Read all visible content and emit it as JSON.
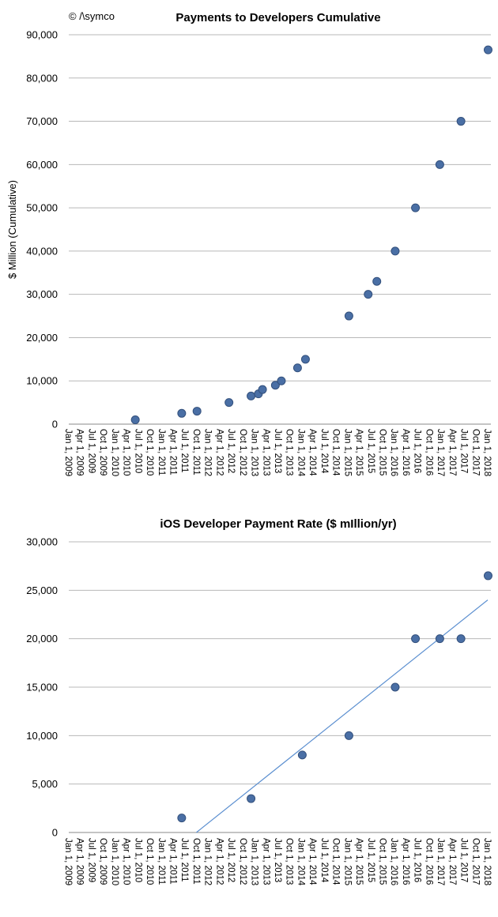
{
  "copyright": "© /\\symco",
  "chart_data": [
    {
      "type": "scatter",
      "title": "Payments to Developers Cumulative",
      "xlabel": "",
      "ylabel": "$ Million (Cumulative)",
      "ylim": [
        0,
        90000
      ],
      "yticks": [
        "0",
        "10,000",
        "20,000",
        "30,000",
        "40,000",
        "50,000",
        "60,000",
        "70,000",
        "80,000",
        "90,000"
      ],
      "xticks": [
        "Jan 1, 2009",
        "Apr 1, 2009",
        "Jul 1, 2009",
        "Oct 1, 2009",
        "Jan 1, 2010",
        "Apr 1, 2010",
        "Jul 1, 2010",
        "Oct 1, 2010",
        "Jan 1, 2011",
        "Apr 1, 2011",
        "Jul 1, 2011",
        "Oct 1, 2011",
        "Jan 1, 2012",
        "Apr 1, 2012",
        "Jul 1, 2012",
        "Oct 1, 2012",
        "Jan 1, 2013",
        "Apr 1, 2013",
        "Jul 1, 2013",
        "Oct 1, 2013",
        "Jan 1, 2014",
        "Apr 1, 2014",
        "Jul 1, 2014",
        "Oct 1, 2014",
        "Jan 1, 2015",
        "Apr 1, 2015",
        "Jul 1, 2015",
        "Oct 1, 2015",
        "Jan 1, 2016",
        "Apr 1, 2016",
        "Jul 1, 2016",
        "Oct 1, 2016",
        "Jan 1, 2017",
        "Apr 1, 2017",
        "Jul 1, 2017",
        "Oct 1, 2017",
        "Jan 1, 2018"
      ],
      "grid": true,
      "points": [
        {
          "x": "2010-06-07",
          "y": 1000
        },
        {
          "x": "2011-06-06",
          "y": 2500
        },
        {
          "x": "2011-10-04",
          "y": 3000
        },
        {
          "x": "2012-06-11",
          "y": 5000
        },
        {
          "x": "2012-12-01",
          "y": 6500
        },
        {
          "x": "2013-01-28",
          "y": 7000
        },
        {
          "x": "2013-03-01",
          "y": 8000
        },
        {
          "x": "2013-06-10",
          "y": 9000
        },
        {
          "x": "2013-07-27",
          "y": 10000
        },
        {
          "x": "2013-12-01",
          "y": 13000
        },
        {
          "x": "2014-02-01",
          "y": 15000
        },
        {
          "x": "2015-01-08",
          "y": 25000
        },
        {
          "x": "2015-06-08",
          "y": 30000
        },
        {
          "x": "2015-08-15",
          "y": 33000
        },
        {
          "x": "2016-01-06",
          "y": 40000
        },
        {
          "x": "2016-06-13",
          "y": 50000
        },
        {
          "x": "2016-12-21",
          "y": 60000
        },
        {
          "x": "2017-06-05",
          "y": 70000
        },
        {
          "x": "2018-01-04",
          "y": 86500
        }
      ]
    },
    {
      "type": "scatter",
      "title": "iOS Developer Payment Rate ($ mIllion/yr)",
      "xlabel": "",
      "ylabel": "",
      "ylim": [
        0,
        30000
      ],
      "yticks": [
        "0",
        "5,000",
        "10,000",
        "15,000",
        "20,000",
        "25,000",
        "30,000"
      ],
      "xticks": [
        "Jan 1, 2009",
        "Apr 1, 2009",
        "Jul 1, 2009",
        "Oct 1, 2009",
        "Jan 1, 2010",
        "Apr 1, 2010",
        "Jul 1, 2010",
        "Oct 1, 2010",
        "Jan 1, 2011",
        "Apr 1, 2011",
        "Jul 1, 2011",
        "Oct 1, 2011",
        "Jan 1, 2012",
        "Apr 1, 2012",
        "Jul 1, 2012",
        "Oct 1, 2012",
        "Jan 1, 2013",
        "Apr 1, 2013",
        "Jul 1, 2013",
        "Oct 1, 2013",
        "Jan 1, 2014",
        "Apr 1, 2014",
        "Jul 1, 2014",
        "Oct 1, 2014",
        "Jan 1, 2015",
        "Apr 1, 2015",
        "Jul 1, 2015",
        "Oct 1, 2015",
        "Jan 1, 2016",
        "Apr 1, 2016",
        "Jul 1, 2016",
        "Oct 1, 2016",
        "Jan 1, 2017",
        "Apr 1, 2017",
        "Jul 1, 2017",
        "Oct 1, 2017",
        "Jan 1, 2018"
      ],
      "grid": true,
      "points": [
        {
          "x": "2011-06-06",
          "y": 1500
        },
        {
          "x": "2012-12-01",
          "y": 3500
        },
        {
          "x": "2014-01-07",
          "y": 8000
        },
        {
          "x": "2015-01-08",
          "y": 10000
        },
        {
          "x": "2016-01-06",
          "y": 15000
        },
        {
          "x": "2016-06-13",
          "y": 20000
        },
        {
          "x": "2016-12-21",
          "y": 20000
        },
        {
          "x": "2017-06-05",
          "y": 20000
        },
        {
          "x": "2018-01-04",
          "y": 26500
        }
      ],
      "trendline": {
        "type": "linear",
        "from": {
          "x": "2011-09-29",
          "y": 0
        },
        "to": {
          "x": "2018-01-01",
          "y": 24000
        }
      }
    }
  ],
  "colors": {
    "points": "#4a6fa5",
    "point_outline": "#33507c",
    "trendline": "#5b8fd0",
    "grid": "#b8b8b8"
  }
}
